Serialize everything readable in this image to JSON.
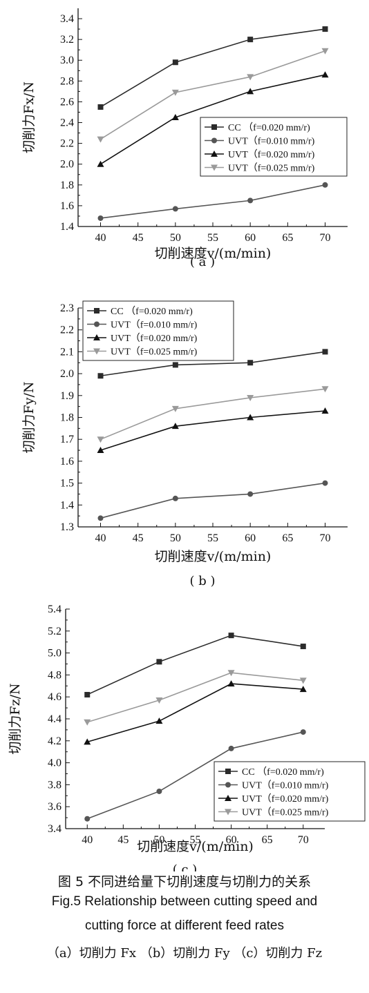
{
  "chart_data": [
    {
      "type": "line",
      "panel": "(a)",
      "x": [
        40,
        50,
        60,
        70
      ],
      "xlim": [
        37,
        73
      ],
      "ylim": [
        1.4,
        3.5
      ],
      "xticks": [
        40,
        45,
        50,
        55,
        60,
        65,
        70
      ],
      "yticks": [
        1.4,
        1.6,
        1.8,
        2.0,
        2.2,
        2.4,
        2.6,
        2.8,
        3.0,
        3.2,
        3.4
      ],
      "xlabel": "切削速度v/(m/min)",
      "ylabel": "切削力Fx/N",
      "legend_position": "middle-right",
      "series": [
        {
          "name": "CC （f=0.020 mm/r)",
          "marker": "square",
          "color": "#2b2b2b",
          "values": [
            2.55,
            2.98,
            3.2,
            3.3
          ]
        },
        {
          "name": "UVT（f=0.010 mm/r)",
          "marker": "circle",
          "color": "#555555",
          "values": [
            1.48,
            1.57,
            1.65,
            1.8
          ]
        },
        {
          "name": "UVT（f=0.020 mm/r)",
          "marker": "triangle-up",
          "color": "#111111",
          "values": [
            2.0,
            2.45,
            2.7,
            2.86
          ]
        },
        {
          "name": "UVT（f=0.025 mm/r)",
          "marker": "triangle-down",
          "color": "#9a9a9a",
          "values": [
            2.24,
            2.69,
            2.84,
            3.09
          ]
        }
      ]
    },
    {
      "type": "line",
      "panel": "(b)",
      "x": [
        40,
        50,
        60,
        70
      ],
      "xlim": [
        37,
        73
      ],
      "ylim": [
        1.3,
        2.3
      ],
      "xticks": [
        40,
        45,
        50,
        55,
        60,
        65,
        70
      ],
      "yticks": [
        1.3,
        1.4,
        1.5,
        1.6,
        1.7,
        1.8,
        1.9,
        2.0,
        2.1,
        2.2,
        2.3
      ],
      "xlabel": "切削速度v/(m/min)",
      "ylabel": "切削力Fy/N",
      "legend_position": "top-left",
      "series": [
        {
          "name": "CC （f=0.020 mm/r)",
          "marker": "square",
          "color": "#2b2b2b",
          "values": [
            1.99,
            2.04,
            2.05,
            2.1
          ]
        },
        {
          "name": "UVT（f=0.010 mm/r)",
          "marker": "circle",
          "color": "#555555",
          "values": [
            1.34,
            1.43,
            1.45,
            1.5
          ]
        },
        {
          "name": "UVT（f=0.020 mm/r)",
          "marker": "triangle-up",
          "color": "#111111",
          "values": [
            1.65,
            1.76,
            1.8,
            1.83
          ]
        },
        {
          "name": "UVT（f=0.025 mm/r)",
          "marker": "triangle-down",
          "color": "#9a9a9a",
          "values": [
            1.7,
            1.84,
            1.89,
            1.93
          ]
        }
      ]
    },
    {
      "type": "line",
      "panel": "(c)",
      "x": [
        40,
        50,
        60,
        70
      ],
      "xlim": [
        37,
        73
      ],
      "ylim": [
        3.4,
        5.4
      ],
      "xticks": [
        40,
        45,
        50,
        55,
        60,
        65,
        70
      ],
      "yticks": [
        3.4,
        3.6,
        3.8,
        4.0,
        4.2,
        4.4,
        4.6,
        4.8,
        5.0,
        5.2,
        5.4
      ],
      "xlabel": "切削速度v/(m/min)",
      "ylabel": "切削力Fz/N",
      "legend_position": "bottom-right",
      "series": [
        {
          "name": "CC （f=0.020 mm/r)",
          "marker": "square",
          "color": "#2b2b2b",
          "values": [
            4.62,
            4.92,
            5.16,
            5.06
          ]
        },
        {
          "name": "UVT（f=0.010 mm/r)",
          "marker": "circle",
          "color": "#555555",
          "values": [
            3.49,
            3.74,
            4.13,
            4.28
          ]
        },
        {
          "name": "UVT（f=0.020 mm/r)",
          "marker": "triangle-up",
          "color": "#111111",
          "values": [
            4.19,
            4.38,
            4.72,
            4.67
          ]
        },
        {
          "name": "UVT（f=0.025 mm/r)",
          "marker": "triangle-down",
          "color": "#9a9a9a",
          "values": [
            4.37,
            4.57,
            4.82,
            4.75
          ]
        }
      ]
    }
  ],
  "labels": {
    "panel_a": "( a )",
    "panel_b": "( b )",
    "panel_c": "( c )"
  },
  "caption": {
    "cn": "图 5 不同进给量下切削速度与切削力的关系",
    "en_line1": "Fig.5 Relationship between cutting speed and",
    "en_line2": "cutting force at different feed rates",
    "sub": "（a）切削力 Fx （b）切削力 Fy （c）切削力 Fz"
  }
}
